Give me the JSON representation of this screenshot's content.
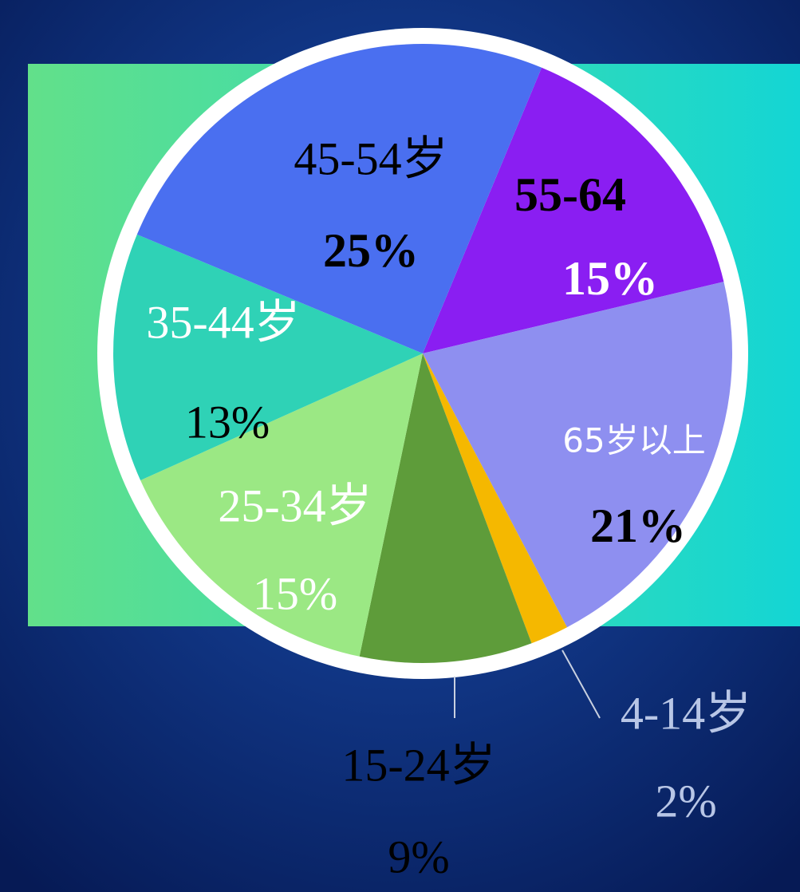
{
  "chart_data": {
    "type": "pie",
    "categories": [
      "55-64",
      "65岁以上",
      "4-14岁",
      "15-24岁",
      "25-34岁",
      "35-44岁",
      "45-54岁"
    ],
    "values": [
      15,
      21,
      2,
      9,
      15,
      13,
      25
    ],
    "value_labels": [
      "15%",
      "21%",
      "2%",
      "9%",
      "15%",
      "13%",
      "25%"
    ],
    "colors": [
      "#8a1ef2",
      "#8e8ff0",
      "#f5b800",
      "#5e9c3a",
      "#9be884",
      "#2fd2b6",
      "#4a6ff0"
    ]
  }
}
